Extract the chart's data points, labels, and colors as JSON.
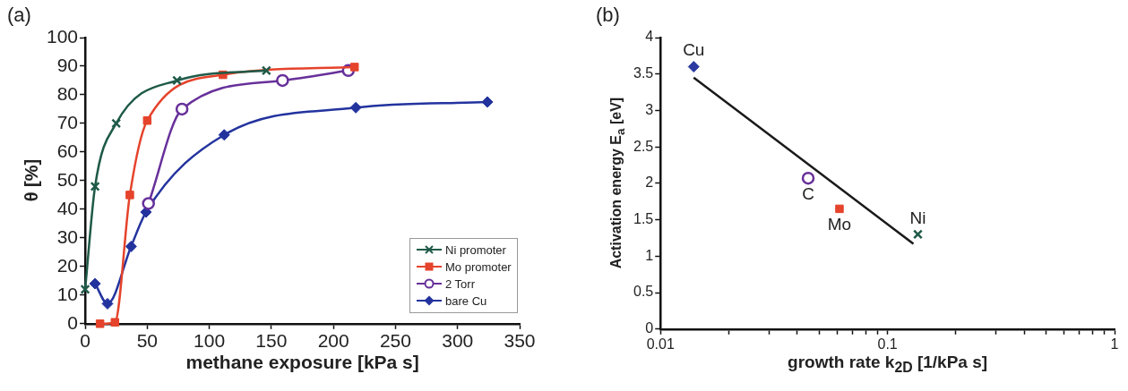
{
  "chart_data": [
    {
      "type": "line",
      "xlabel": "methane exposure [kPa s]",
      "ylabel": "θ  [%]",
      "annotations": [
        "(a)"
      ],
      "xlim": [
        0,
        350
      ],
      "xticks": [
        0,
        50,
        100,
        150,
        200,
        250,
        300,
        350
      ],
      "ylim": [
        0,
        100
      ],
      "yticks": [
        0,
        10,
        20,
        30,
        40,
        50,
        60,
        70,
        80,
        90,
        100
      ],
      "grid": false,
      "legend": "bottom right",
      "series": [
        {
          "name": "Ni promoter",
          "color": "#1f5a48",
          "marker": "cross",
          "x": [
            0,
            8,
            25,
            74,
            146
          ],
          "values": [
            12,
            48,
            70,
            85,
            88.5
          ]
        },
        {
          "name": "Mo promoter",
          "color": "#e5432b",
          "marker": "square",
          "x": [
            12,
            24,
            36,
            50,
            111,
            217
          ],
          "values": [
            0,
            0.5,
            45,
            71,
            87,
            89.7
          ]
        },
        {
          "name": "2 Torr",
          "color": "#67309a",
          "marker": "circle",
          "x": [
            51,
            78,
            159,
            212
          ],
          "values": [
            42,
            75,
            85,
            88.5
          ]
        },
        {
          "name": "bare Cu",
          "color": "#23339e",
          "marker": "diamond",
          "x": [
            8,
            18,
            37,
            49,
            112,
            218,
            324
          ],
          "values": [
            14,
            7,
            27,
            39,
            66,
            75.5,
            77.5
          ]
        }
      ]
    },
    {
      "type": "scatter",
      "xlabel": "growth rate k$_{2D}$ [1/kPa s]",
      "ylabel": "Activation energy E$_{a}$ [eV]",
      "log": "x",
      "annotations": [
        "(b)",
        {
          "text": "Cu",
          "x": 0.014,
          "y": 3.6
        },
        {
          "text": "C",
          "x": 0.0447,
          "y": 2.07
        },
        {
          "text": "Mo",
          "x": 0.0614,
          "y": 1.65
        },
        {
          "text": "Ni",
          "x": 0.136,
          "y": 1.3
        }
      ],
      "xlim": [
        0.01,
        1
      ],
      "xticks": [
        {
          "value": 0.01,
          "label": "0.01"
        },
        {
          "value": 0.02,
          "label": null
        },
        {
          "value": 0.03,
          "label": null
        },
        {
          "value": 0.04,
          "label": null
        },
        {
          "value": 0.05,
          "label": null
        },
        {
          "value": 0.06,
          "label": null
        },
        {
          "value": 0.07,
          "label": null
        },
        {
          "value": 0.08,
          "label": null
        },
        {
          "value": 0.09,
          "label": null
        },
        {
          "value": 0.1,
          "label": "0.1"
        },
        {
          "value": 0.2,
          "label": null
        },
        {
          "value": 0.3,
          "label": null
        },
        {
          "value": 0.4,
          "label": null
        },
        {
          "value": 0.5,
          "label": null
        },
        {
          "value": 0.6,
          "label": null
        },
        {
          "value": 0.7,
          "label": null
        },
        {
          "value": 0.8,
          "label": null
        },
        {
          "value": 0.9,
          "label": null
        },
        {
          "value": 1,
          "label": "1"
        }
      ],
      "ylim": [
        0,
        4
      ],
      "yticks": [
        0,
        0.5,
        1,
        1.5,
        2,
        2.5,
        3,
        3.5,
        4
      ],
      "grid": false,
      "series": [
        {
          "type": "line",
          "color": "#1a1a1a",
          "marker": "none",
          "x": [
            0.014,
            0.13
          ],
          "values": [
            3.45,
            1.17
          ]
        },
        {
          "color": "#2a3aa0",
          "marker": "diamond",
          "x": [
            0.014
          ],
          "values": [
            3.6
          ]
        },
        {
          "color": "#67309a",
          "marker": "circle",
          "x": [
            0.0447
          ],
          "values": [
            2.07
          ]
        },
        {
          "color": "#e5432b",
          "marker": "square",
          "x": [
            0.0614
          ],
          "values": [
            1.65
          ]
        },
        {
          "color": "#1f5a48",
          "marker": "cross",
          "x": [
            0.136
          ],
          "values": [
            1.3
          ]
        }
      ]
    }
  ]
}
